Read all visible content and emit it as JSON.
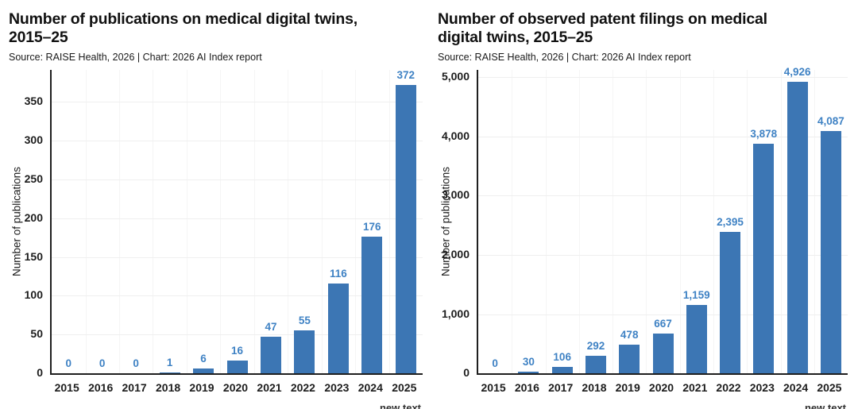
{
  "colors": {
    "bar": "#3c76b4",
    "value_label": "#3f82c4",
    "axis": "#1f1f1f",
    "tick_text": "#1c1c1c",
    "grid_horizontal": "#efefef",
    "grid_vertical": "#f5f5f5",
    "title_text": "#111111",
    "source_text": "#1a1a1a",
    "caption_text": "#333333"
  },
  "chart_data": [
    {
      "type": "bar",
      "title": "Number of publications on medical digital twins,\n2015–25",
      "source": "Source: RAISE Health, 2026 | Chart: 2026 AI Index report",
      "ylabel": "Number of publications",
      "categories": [
        "2015",
        "2016",
        "2017",
        "2018",
        "2019",
        "2020",
        "2021",
        "2022",
        "2023",
        "2024",
        "2025"
      ],
      "values": [
        0,
        0,
        0,
        1,
        6,
        16,
        47,
        55,
        116,
        176,
        372
      ],
      "value_labels": [
        "0",
        "0",
        "0",
        "1",
        "6",
        "16",
        "47",
        "55",
        "116",
        "176",
        "372"
      ],
      "tick_values": [
        0,
        50,
        100,
        150,
        200,
        250,
        300,
        350
      ],
      "tick_labels": [
        "0",
        "50",
        "100",
        "150",
        "200",
        "250",
        "300",
        "350"
      ],
      "ylim": [
        0,
        391
      ],
      "grid": true,
      "legend": "none",
      "caption": "new text"
    },
    {
      "type": "bar",
      "title": "Number of observed patent filings on medical\ndigital twins, 2015–25",
      "source": "Source: RAISE Health, 2026 | Chart: 2026 AI Index report",
      "ylabel": "Number of publications",
      "categories": [
        "2015",
        "2016",
        "2017",
        "2018",
        "2019",
        "2020",
        "2021",
        "2022",
        "2023",
        "2024",
        "2025"
      ],
      "values": [
        0,
        30,
        106,
        292,
        478,
        667,
        1159,
        2395,
        3878,
        4926,
        4087
      ],
      "value_labels": [
        "0",
        "30",
        "106",
        "292",
        "478",
        "667",
        "1,159",
        "2,395",
        "3,878",
        "4,926",
        "4,087"
      ],
      "tick_values": [
        0,
        1000,
        2000,
        3000,
        4000,
        5000
      ],
      "tick_labels": [
        "0",
        "1,000",
        "2,000",
        "3,000",
        "4,000",
        "5,000"
      ],
      "ylim": [
        0,
        5125
      ],
      "grid": true,
      "legend": "none",
      "caption": "new text"
    }
  ]
}
